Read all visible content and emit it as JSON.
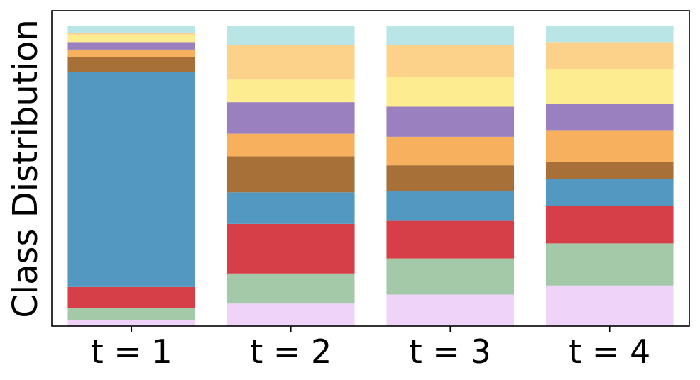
{
  "chart_data": {
    "type": "bar",
    "stacked": true,
    "normalized": true,
    "ylabel": "Class Distribution",
    "xlabel": "",
    "ylim": [
      0,
      1
    ],
    "y_ticks_shown": false,
    "grid": false,
    "legend": "none",
    "categories": [
      "t = 1",
      "t = 2",
      "t = 3",
      "t = 4"
    ],
    "series": [
      {
        "color": "#f0d4f7",
        "values": [
          0.02,
          0.075,
          0.105,
          0.135
        ]
      },
      {
        "color": "#a4c9a8",
        "values": [
          0.04,
          0.1,
          0.12,
          0.14
        ]
      },
      {
        "color": "#d63f48",
        "values": [
          0.07,
          0.165,
          0.125,
          0.125
        ]
      },
      {
        "color": "#5298c0",
        "values": [
          0.715,
          0.105,
          0.1,
          0.09
        ]
      },
      {
        "color": "#a77039",
        "values": [
          0.05,
          0.12,
          0.085,
          0.055
        ]
      },
      {
        "color": "#f7b05e",
        "values": [
          0.025,
          0.075,
          0.095,
          0.105
        ]
      },
      {
        "color": "#9b80bf",
        "values": [
          0.025,
          0.105,
          0.1,
          0.09
        ]
      },
      {
        "color": "#fdec90",
        "values": [
          0.025,
          0.075,
          0.1,
          0.115
        ]
      },
      {
        "color": "#fcd28b",
        "values": [
          0.005,
          0.115,
          0.105,
          0.09
        ]
      },
      {
        "color": "#b9e5e7",
        "values": [
          0.025,
          0.065,
          0.065,
          0.055
        ]
      }
    ]
  }
}
